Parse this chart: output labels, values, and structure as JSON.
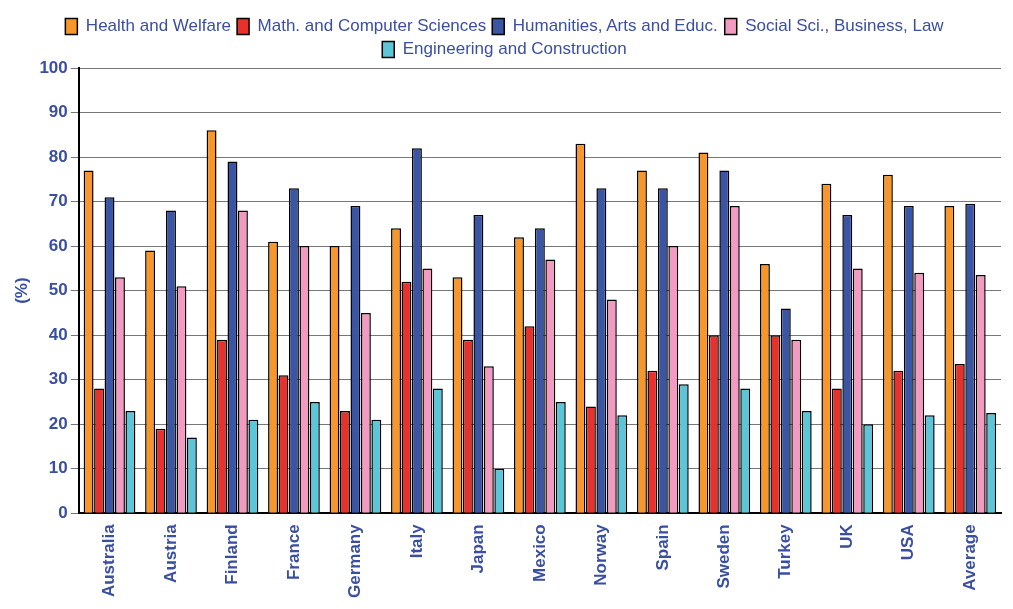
{
  "chart_data": {
    "type": "bar",
    "ylabel": "(%)",
    "categories": [
      "Australia",
      "Austria",
      "Finland",
      "France",
      "Germany",
      "Italy",
      "Japan",
      "Mexico",
      "Norway",
      "Spain",
      "Sweden",
      "Turkey",
      "UK",
      "USA",
      "Average"
    ],
    "series": [
      {
        "name": "Health and Welfare",
        "color": "#f7962b",
        "values": [
          77,
          59,
          86,
          61,
          60,
          64,
          53,
          62,
          83,
          77,
          81,
          56,
          74,
          76,
          69
        ]
      },
      {
        "name": "Math. and Computer Sciences",
        "color": "#e8312a",
        "values": [
          28,
          19,
          39,
          31,
          23,
          52,
          39,
          42,
          24,
          32,
          40,
          40,
          28,
          32,
          33.5
        ]
      },
      {
        "name": "Humanities, Arts and Educ.",
        "color": "#3a55a4",
        "values": [
          71,
          68,
          79,
          73,
          69,
          82,
          67,
          64,
          73,
          73,
          77,
          46,
          67,
          69,
          69.5
        ]
      },
      {
        "name": "Social Sci., Business, Law",
        "color": "#f29ac0",
        "values": [
          53,
          51,
          68,
          60,
          45,
          55,
          33,
          57,
          48,
          60,
          69,
          39,
          55,
          54,
          53.5
        ]
      },
      {
        "name": "Engineering and Construction",
        "color": "#5bc6d8",
        "values": [
          23,
          17,
          21,
          25,
          21,
          28,
          10,
          25,
          22,
          29,
          28,
          23,
          20,
          22,
          22.5
        ]
      }
    ],
    "ylim": [
      0,
      100
    ],
    "yticks": [
      0,
      10,
      20,
      30,
      40,
      50,
      60,
      70,
      80,
      90,
      100
    ],
    "grid": "y",
    "legend": "top"
  }
}
